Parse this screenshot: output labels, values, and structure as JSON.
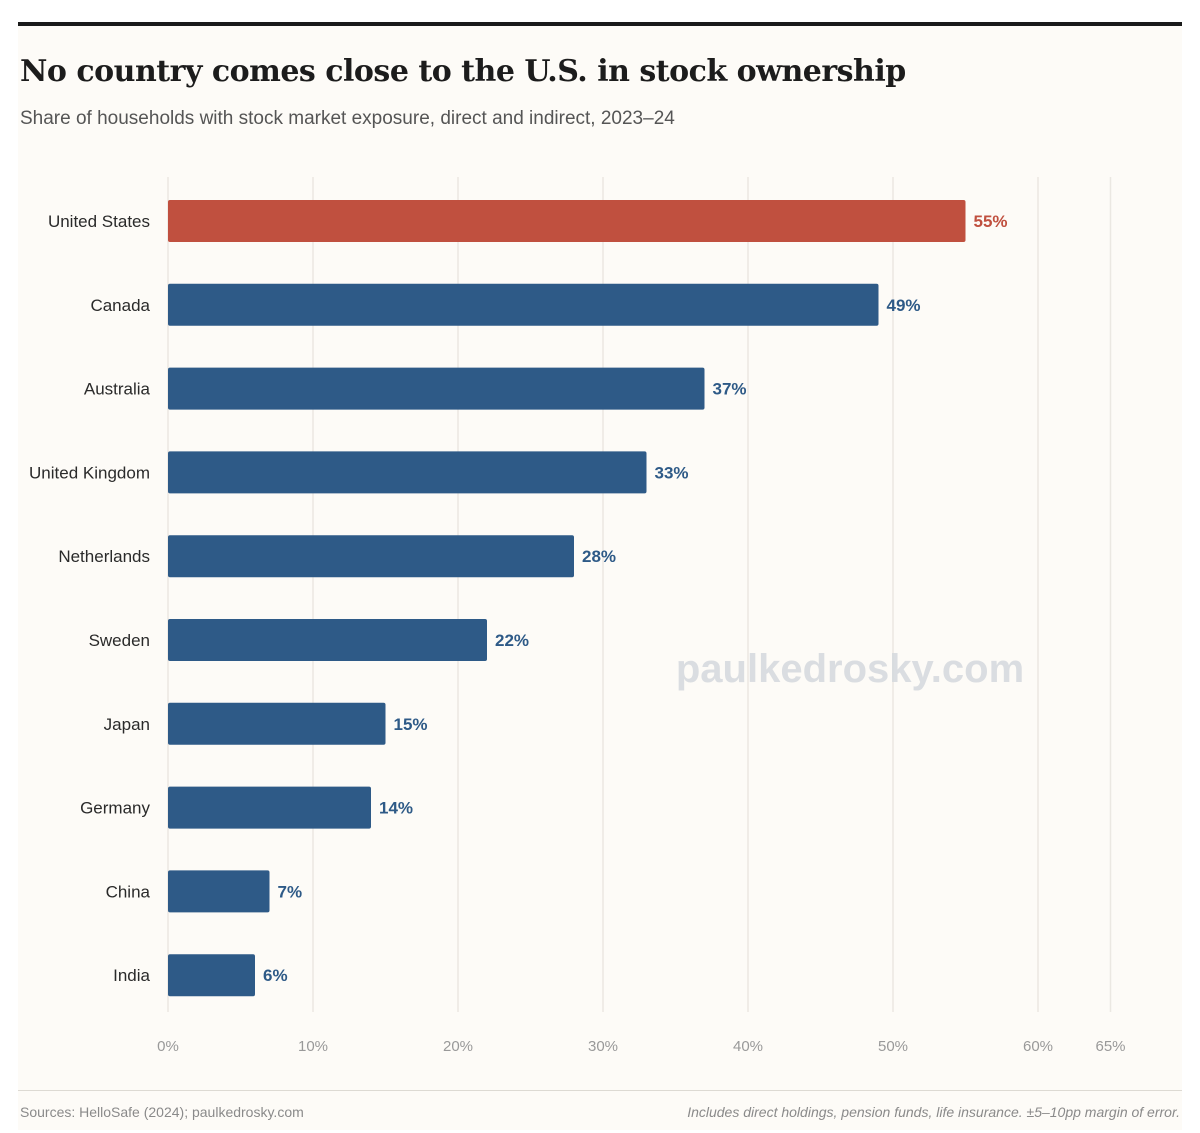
{
  "chart_data": {
    "type": "bar",
    "orientation": "horizontal",
    "title": "No country comes close to the U.S. in stock ownership",
    "subtitle": "Share of households with stock market exposure, direct and indirect, 2023–24",
    "categories": [
      "United States",
      "Canada",
      "Australia",
      "United Kingdom",
      "Netherlands",
      "Sweden",
      "Japan",
      "Germany",
      "China",
      "India"
    ],
    "values": [
      55,
      49,
      37,
      33,
      28,
      22,
      15,
      14,
      7,
      6
    ],
    "value_labels": [
      "55%",
      "49%",
      "37%",
      "33%",
      "28%",
      "22%",
      "15%",
      "14%",
      "7%",
      "6%"
    ],
    "highlight_category": "United States",
    "colors": {
      "highlight": "#c0503f",
      "default": "#2e5a87",
      "grid": "#ebe8e2",
      "axis_text": "#999999"
    },
    "xlim": [
      0,
      65
    ],
    "x_ticks": [
      0,
      10,
      20,
      30,
      40,
      50,
      60,
      65
    ],
    "x_tick_labels": [
      "0%",
      "10%",
      "20%",
      "30%",
      "40%",
      "50%",
      "60%",
      "65%"
    ],
    "grid": true,
    "watermark": "paulkedrosky.com",
    "source": "Sources: HelloSafe (2024); paulkedrosky.com",
    "note": "Includes direct holdings, pension funds, life insurance. ±5–10pp margin of error."
  }
}
